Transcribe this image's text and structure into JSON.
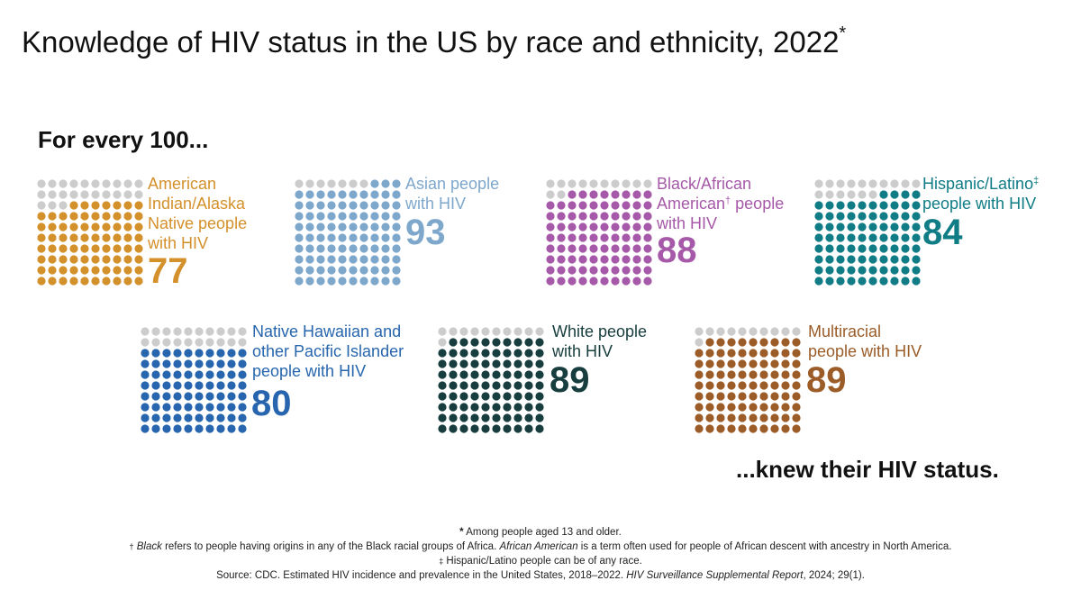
{
  "title": "Knowledge of HIV status in the US by race and ethnicity, 2022",
  "title_mark": "*",
  "lead": "For every 100...",
  "closing": "...knew their HIV status.",
  "colors": {
    "empty_dot": "#cccccc"
  },
  "chart_data": {
    "type": "waffle",
    "grid_total": 100,
    "categories": [
      "American Indian/Alaska Native people with HIV",
      "Asian people with HIV",
      "Black/African American people with HIV",
      "Hispanic/Latino people with HIV",
      "Native Hawaiian and other Pacific Islander people with HIV",
      "White people with HIV",
      "Multiracial people with HIV"
    ],
    "values": [
      77,
      93,
      88,
      84,
      80,
      89,
      89
    ],
    "groups": [
      {
        "label_lines": [
          "American",
          "Indian/Alaska",
          "Native people",
          "with HIV"
        ],
        "mark": "",
        "value": 77,
        "value_text": "77",
        "color": "#d4902b"
      },
      {
        "label_lines": [
          "Asian people",
          "with HIV"
        ],
        "mark": "",
        "value": 93,
        "value_text": "93",
        "color": "#7ea7cc"
      },
      {
        "label_lines": [
          "Black/African",
          "American",
          "with HIV"
        ],
        "mark": "†",
        "mark_line": 1,
        "after_mark": " people",
        "value": 88,
        "value_text": "88",
        "color": "#a659a8"
      },
      {
        "label_lines": [
          "Hispanic/Latino",
          "people with HIV"
        ],
        "mark": "‡",
        "mark_line": 0,
        "after_mark": "",
        "value": 84,
        "value_text": "84",
        "color": "#0f7c86"
      },
      {
        "label_lines": [
          "Native Hawaiian and",
          "other Pacific Islander",
          "people with HIV"
        ],
        "mark": "",
        "value": 80,
        "value_text": "80",
        "color": "#2766ae"
      },
      {
        "label_lines": [
          "White people",
          "with HIV"
        ],
        "mark": "",
        "value": 89,
        "value_text": "89",
        "color": "#173d3f"
      },
      {
        "label_lines": [
          "Multiracial",
          "people with HIV"
        ],
        "mark": "",
        "value": 89,
        "value_text": "89",
        "color": "#9b5c28"
      }
    ]
  },
  "footnotes": {
    "note1": {
      "mark": "*",
      "text": " Among people aged 13 and older."
    },
    "note2": {
      "mark": "†",
      "italic1": "Black",
      "text1": " refers to people having origins in any of the Black racial groups of Africa. ",
      "italic2": "African American",
      "text2": " is a term often used for people of African descent with ancestry in North America."
    },
    "note3": {
      "mark": "‡",
      "text": " Hispanic/Latino people can be of any race."
    },
    "source": {
      "text1": "Source: CDC. Estimated HIV incidence and prevalence in the United States, 2018–2022. ",
      "italic": "HIV Surveillance Supplemental Report",
      "text2": ", 2024; 29(1)."
    }
  }
}
